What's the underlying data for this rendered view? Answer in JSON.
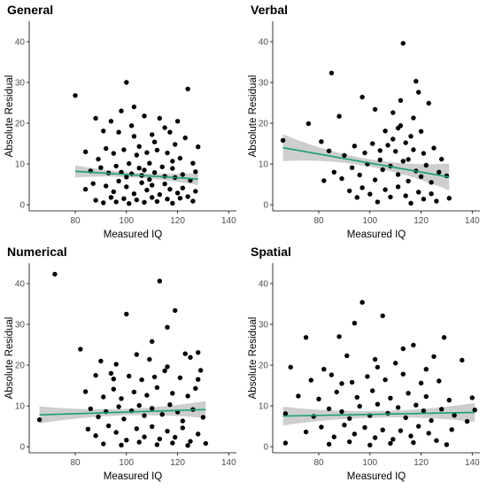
{
  "colors": {
    "point": "#000000",
    "fit_line": "#1b9e77",
    "ci_band": "#bdbdbd",
    "axis": "#000000"
  },
  "chart_data": [
    {
      "type": "scatter",
      "title": "General",
      "xlabel": "Measured IQ",
      "ylabel": "Absolute Residual",
      "xlim": [
        62,
        143
      ],
      "ylim": [
        -1.5,
        45
      ],
      "xticks": [
        80,
        100,
        120,
        140
      ],
      "yticks": [
        0,
        10,
        20,
        30,
        40
      ],
      "grid": false,
      "fit": {
        "x": [
          80,
          128
        ],
        "y": [
          8.2,
          6.3
        ],
        "ci_half_width_ends": 1.5,
        "ci_half_width_mid": 0.6
      },
      "points": [
        [
          80,
          26.8
        ],
        [
          100,
          30
        ],
        [
          124,
          28.4
        ],
        [
          88,
          21.2
        ],
        [
          94,
          20.5
        ],
        [
          107,
          21.8
        ],
        [
          113,
          21.2
        ],
        [
          120,
          20.5
        ],
        [
          128,
          14.2
        ],
        [
          91,
          18.1
        ],
        [
          97,
          17.8
        ],
        [
          103,
          16.8
        ],
        [
          110,
          17.2
        ],
        [
          117,
          17.8
        ],
        [
          123,
          16.4
        ],
        [
          84,
          13.0
        ],
        [
          89,
          11.2
        ],
        [
          95,
          12.6
        ],
        [
          99,
          13.5
        ],
        [
          104,
          12.2
        ],
        [
          108,
          12.8
        ],
        [
          112,
          13.4
        ],
        [
          116,
          12.7
        ],
        [
          121,
          11.4
        ],
        [
          126,
          10.2
        ],
        [
          86,
          8.3
        ],
        [
          90,
          9.1
        ],
        [
          93,
          7.8
        ],
        [
          96,
          9.5
        ],
        [
          98,
          8.0
        ],
        [
          101,
          10.1
        ],
        [
          102,
          7.6
        ],
        [
          105,
          9.0
        ],
        [
          107,
          8.5
        ],
        [
          109,
          10.2
        ],
        [
          111,
          7.9
        ],
        [
          114,
          9.3
        ],
        [
          115,
          7.0
        ],
        [
          118,
          8.9
        ],
        [
          119,
          6.7
        ],
        [
          122,
          7.4
        ],
        [
          125,
          6.0
        ],
        [
          127,
          8.1
        ],
        [
          84,
          3.8
        ],
        [
          87,
          5.2
        ],
        [
          92,
          4.6
        ],
        [
          95,
          3.2
        ],
        [
          97,
          5.8
        ],
        [
          100,
          4.4
        ],
        [
          103,
          2.7
        ],
        [
          106,
          5.4
        ],
        [
          108,
          3.6
        ],
        [
          110,
          4.8
        ],
        [
          113,
          2.5
        ],
        [
          115,
          5.1
        ],
        [
          117,
          3.8
        ],
        [
          120,
          2.9
        ],
        [
          122,
          4.1
        ],
        [
          124,
          2.0
        ],
        [
          127,
          3.3
        ],
        [
          88,
          1.1
        ],
        [
          91,
          0.5
        ],
        [
          94,
          1.8
        ],
        [
          96,
          0.7
        ],
        [
          99,
          1.5
        ],
        [
          101,
          0.3
        ],
        [
          104,
          1.2
        ],
        [
          107,
          0.6
        ],
        [
          110,
          1.8
        ],
        [
          112,
          0.8
        ],
        [
          116,
          1.4
        ],
        [
          118,
          0.4
        ],
        [
          121,
          1.6
        ],
        [
          126,
          0.9
        ],
        [
          103,
          24.0
        ],
        [
          111,
          15.4
        ],
        [
          119,
          14.8
        ],
        [
          98,
          23.0
        ],
        [
          109,
          6.2
        ],
        [
          105,
          14.3
        ],
        [
          92,
          13.8
        ],
        [
          115,
          18.9
        ],
        [
          102,
          19.4
        ],
        [
          118,
          10.7
        ],
        [
          100,
          6.8
        ],
        [
          106,
          7.2
        ]
      ]
    },
    {
      "type": "scatter",
      "title": "Verbal",
      "xlabel": "Measured IQ",
      "ylabel": "Absolute Residual",
      "xlim": [
        62,
        143
      ],
      "ylim": [
        -1.5,
        45
      ],
      "xticks": [
        80,
        100,
        120,
        140
      ],
      "yticks": [
        0,
        10,
        20,
        30,
        40
      ],
      "grid": false,
      "fit": {
        "x": [
          66,
          131
        ],
        "y": [
          14.0,
          6.8
        ],
        "ci_half_width_ends": 3.3,
        "ci_half_width_mid": 0.9
      },
      "points": [
        [
          66,
          15.8
        ],
        [
          76,
          19.9
        ],
        [
          85,
          32.3
        ],
        [
          88,
          21.7
        ],
        [
          97,
          26.4
        ],
        [
          102,
          23.4
        ],
        [
          113,
          39.6
        ],
        [
          118,
          30.3
        ],
        [
          119,
          27.6
        ],
        [
          106,
          18.1
        ],
        [
          109,
          16.1
        ],
        [
          112,
          19.4
        ],
        [
          116,
          16.8
        ],
        [
          123,
          24.9
        ],
        [
          81,
          15.5
        ],
        [
          84,
          13.2
        ],
        [
          90,
          12.1
        ],
        [
          94,
          14.4
        ],
        [
          98,
          12.7
        ],
        [
          101,
          15.0
        ],
        [
          104,
          13.3
        ],
        [
          107,
          14.6
        ],
        [
          110,
          13.1
        ],
        [
          114,
          15.2
        ],
        [
          117,
          13.5
        ],
        [
          121,
          12.6
        ],
        [
          125,
          13.9
        ],
        [
          128,
          11.2
        ],
        [
          82,
          5.9
        ],
        [
          86,
          8.0
        ],
        [
          89,
          6.4
        ],
        [
          93,
          9.1
        ],
        [
          96,
          7.3
        ],
        [
          99,
          10.0
        ],
        [
          102,
          6.1
        ],
        [
          105,
          8.6
        ],
        [
          108,
          9.5
        ],
        [
          111,
          7.4
        ],
        [
          113,
          10.7
        ],
        [
          115,
          5.8
        ],
        [
          118,
          8.3
        ],
        [
          120,
          6.9
        ],
        [
          122,
          9.7
        ],
        [
          124,
          5.5
        ],
        [
          127,
          8.0
        ],
        [
          130,
          7.1
        ],
        [
          92,
          3.4
        ],
        [
          95,
          1.8
        ],
        [
          97,
          4.2
        ],
        [
          100,
          2.6
        ],
        [
          103,
          0.7
        ],
        [
          106,
          3.7
        ],
        [
          108,
          1.9
        ],
        [
          111,
          4.4
        ],
        [
          114,
          2.2
        ],
        [
          116,
          0.4
        ],
        [
          119,
          3.1
        ],
        [
          121,
          1.4
        ],
        [
          124,
          2.7
        ],
        [
          126,
          0.9
        ],
        [
          131,
          1.6
        ],
        [
          109,
          22.6
        ],
        [
          112,
          25.6
        ],
        [
          117,
          21.3
        ],
        [
          115,
          11.1
        ],
        [
          104,
          11.0
        ],
        [
          111,
          18.8
        ],
        [
          120,
          18.0
        ]
      ]
    },
    {
      "type": "scatter",
      "title": "Numerical",
      "xlabel": "Measured IQ",
      "ylabel": "Absolute Residual",
      "xlim": [
        62,
        143
      ],
      "ylim": [
        -1.5,
        45
      ],
      "xticks": [
        80,
        100,
        120,
        140
      ],
      "yticks": [
        0,
        10,
        20,
        30,
        40
      ],
      "grid": false,
      "fit": {
        "x": [
          66,
          131
        ],
        "y": [
          7.8,
          9.1
        ],
        "ci_half_width_ends": 2.1,
        "ci_half_width_mid": 0.8
      },
      "points": [
        [
          72,
          42.3
        ],
        [
          113,
          40.6
        ],
        [
          100,
          32.5
        ],
        [
          119,
          33.4
        ],
        [
          116,
          29.3
        ],
        [
          82,
          23.9
        ],
        [
          123,
          22.8
        ],
        [
          128,
          23.1
        ],
        [
          90,
          21.0
        ],
        [
          96,
          20.2
        ],
        [
          109,
          21.4
        ],
        [
          125,
          21.9
        ],
        [
          88,
          17.5
        ],
        [
          94,
          18.0
        ],
        [
          101,
          17.3
        ],
        [
          106,
          16.4
        ],
        [
          111,
          17.1
        ],
        [
          115,
          18.6
        ],
        [
          121,
          16.9
        ],
        [
          129,
          18.7
        ],
        [
          84,
          13.5
        ],
        [
          91,
          12.2
        ],
        [
          95,
          14.1
        ],
        [
          98,
          11.8
        ],
        [
          103,
          13.4
        ],
        [
          108,
          12.6
        ],
        [
          112,
          14.5
        ],
        [
          118,
          13.1
        ],
        [
          124,
          12.4
        ],
        [
          127,
          14.3
        ],
        [
          66,
          6.6
        ],
        [
          86,
          9.3
        ],
        [
          89,
          7.3
        ],
        [
          92,
          8.6
        ],
        [
          97,
          9.8
        ],
        [
          99,
          6.8
        ],
        [
          102,
          8.8
        ],
        [
          105,
          10.1
        ],
        [
          107,
          7.6
        ],
        [
          110,
          9.4
        ],
        [
          114,
          7.9
        ],
        [
          117,
          10.3
        ],
        [
          120,
          8.5
        ],
        [
          122,
          6.3
        ],
        [
          126,
          9.1
        ],
        [
          130,
          7.2
        ],
        [
          85,
          4.3
        ],
        [
          88,
          2.7
        ],
        [
          93,
          5.1
        ],
        [
          96,
          3.5
        ],
        [
          100,
          1.6
        ],
        [
          104,
          4.4
        ],
        [
          107,
          2.4
        ],
        [
          110,
          4.9
        ],
        [
          113,
          1.9
        ],
        [
          116,
          3.8
        ],
        [
          119,
          2.3
        ],
        [
          122,
          4.6
        ],
        [
          125,
          1.3
        ],
        [
          128,
          3.1
        ],
        [
          91,
          0.7
        ],
        [
          98,
          0.4
        ],
        [
          105,
          1.1
        ],
        [
          112,
          0.5
        ],
        [
          118,
          0.9
        ],
        [
          124,
          0.3
        ],
        [
          131,
          0.8
        ],
        [
          104,
          22.6
        ],
        [
          116,
          19.6
        ],
        [
          128,
          16.5
        ],
        [
          95,
          16.6
        ],
        [
          110,
          25.8
        ]
      ]
    },
    {
      "type": "scatter",
      "title": "Spatial",
      "xlabel": "Measured IQ",
      "ylabel": "Absolute Residual",
      "xlim": [
        62,
        143
      ],
      "ylim": [
        -1.5,
        45
      ],
      "xticks": [
        80,
        100,
        120,
        140
      ],
      "yticks": [
        0,
        10,
        20,
        30,
        40
      ],
      "grid": false,
      "fit": {
        "x": [
          66,
          141
        ],
        "y": [
          7.5,
          8.4
        ],
        "ci_half_width_ends": 2.3,
        "ci_half_width_mid": 0.8
      },
      "points": [
        [
          97,
          35.4
        ],
        [
          105,
          32.1
        ],
        [
          75,
          26.8
        ],
        [
          88,
          27.0
        ],
        [
          94,
          30.3
        ],
        [
          129,
          26.8
        ],
        [
          117,
          24.9
        ],
        [
          69,
          19.5
        ],
        [
          82,
          19.0
        ],
        [
          91,
          22.3
        ],
        [
          102,
          21.4
        ],
        [
          110,
          20.5
        ],
        [
          125,
          22.1
        ],
        [
          136,
          21.2
        ],
        [
          77,
          16.3
        ],
        [
          85,
          17.6
        ],
        [
          93,
          15.8
        ],
        [
          99,
          17.2
        ],
        [
          106,
          16.4
        ],
        [
          113,
          17.8
        ],
        [
          120,
          15.6
        ],
        [
          127,
          16.1
        ],
        [
          72,
          12.4
        ],
        [
          80,
          11.7
        ],
        [
          87,
          13.4
        ],
        [
          95,
          12.1
        ],
        [
          101,
          13.7
        ],
        [
          108,
          11.9
        ],
        [
          115,
          13.1
        ],
        [
          122,
          12.3
        ],
        [
          131,
          11.4
        ],
        [
          140,
          12.0
        ],
        [
          67,
          8.1
        ],
        [
          78,
          7.4
        ],
        [
          84,
          9.3
        ],
        [
          89,
          8.6
        ],
        [
          92,
          6.9
        ],
        [
          96,
          9.9
        ],
        [
          100,
          7.6
        ],
        [
          103,
          10.4
        ],
        [
          107,
          8.2
        ],
        [
          111,
          9.6
        ],
        [
          114,
          7.1
        ],
        [
          118,
          10.2
        ],
        [
          121,
          8.8
        ],
        [
          124,
          6.4
        ],
        [
          128,
          9.2
        ],
        [
          133,
          7.7
        ],
        [
          138,
          6.2
        ],
        [
          75,
          3.6
        ],
        [
          81,
          4.8
        ],
        [
          86,
          2.4
        ],
        [
          90,
          5.3
        ],
        [
          94,
          3.1
        ],
        [
          98,
          4.7
        ],
        [
          102,
          2.2
        ],
        [
          105,
          4.1
        ],
        [
          109,
          1.8
        ],
        [
          112,
          3.9
        ],
        [
          116,
          2.6
        ],
        [
          119,
          5.0
        ],
        [
          123,
          3.3
        ],
        [
          126,
          1.5
        ],
        [
          132,
          4.2
        ],
        [
          67,
          0.9
        ],
        [
          84,
          0.6
        ],
        [
          92,
          1.2
        ],
        [
          100,
          0.4
        ],
        [
          108,
          0.8
        ],
        [
          117,
          1.0
        ],
        [
          130,
          0.5
        ],
        [
          113,
          24.0
        ],
        [
          103,
          19.5
        ],
        [
          89,
          15.5
        ],
        [
          122,
          19.0
        ],
        [
          141,
          9.0
        ]
      ]
    }
  ]
}
